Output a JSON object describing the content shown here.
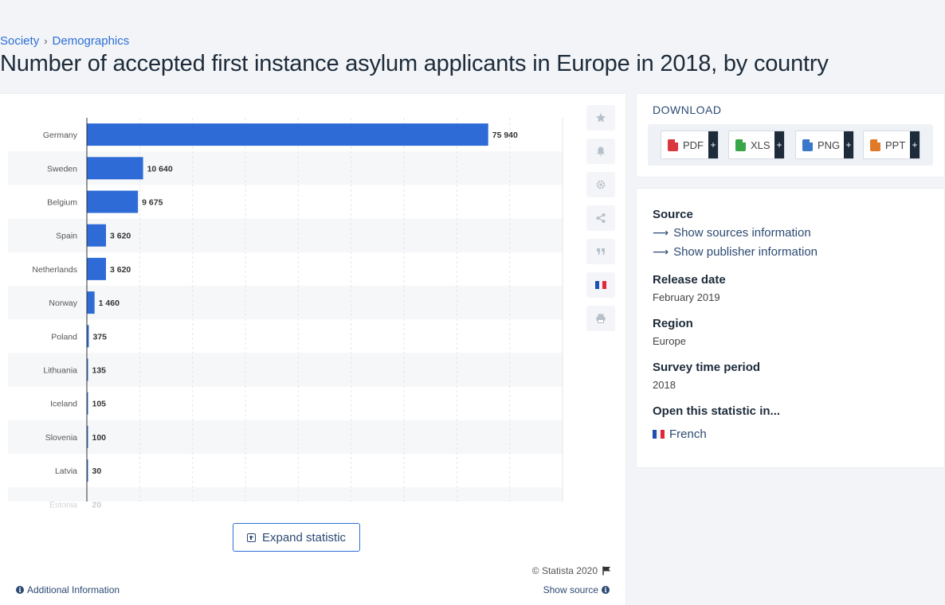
{
  "breadcrumb": {
    "items": [
      "Society",
      "Demographics"
    ],
    "separator": "›"
  },
  "page": {
    "title": "Number of accepted first instance asylum applicants in Europe in 2018, by country"
  },
  "chart_data": {
    "type": "bar",
    "orientation": "horizontal",
    "categories": [
      "Germany",
      "Sweden",
      "Belgium",
      "Spain",
      "Netherlands",
      "Norway",
      "Poland",
      "Lithuania",
      "Iceland",
      "Slovenia",
      "Latvia",
      "Estonia"
    ],
    "values": [
      75940,
      10640,
      9675,
      3620,
      3620,
      1460,
      375,
      135,
      105,
      100,
      30,
      20
    ],
    "value_labels": [
      "75 940",
      "10 640",
      "9 675",
      "3 620",
      "3 620",
      "1 460",
      "375",
      "135",
      "105",
      "100",
      "30",
      "20"
    ],
    "xlim": [
      0,
      90000
    ],
    "grid": true,
    "bar_color": "#2e6bd6"
  },
  "toolbar": {
    "icons": [
      "star-icon",
      "bell-icon",
      "gear-icon",
      "share-icon",
      "quote-icon",
      "french-flag-icon",
      "print-icon"
    ]
  },
  "actions": {
    "expand_label": "Expand statistic",
    "copyright": "© Statista 2020",
    "additional_info": "Additional Information",
    "show_source": "Show source"
  },
  "download": {
    "title": "DOWNLOAD",
    "formats": [
      {
        "label": "PDF",
        "plus": "+",
        "color": "#d9363e"
      },
      {
        "label": "XLS",
        "plus": "+",
        "color": "#3aa64a"
      },
      {
        "label": "PNG",
        "plus": "+",
        "color": "#3a78c9"
      },
      {
        "label": "PPT",
        "plus": "+",
        "color": "#e07a28"
      }
    ]
  },
  "source": {
    "heading": "Source",
    "show_sources": "Show sources information",
    "show_publisher": "Show publisher information",
    "release_heading": "Release date",
    "release_value": "February 2019",
    "region_heading": "Region",
    "region_value": "Europe",
    "period_heading": "Survey time period",
    "period_value": "2018",
    "open_heading": "Open this statistic in...",
    "open_language": "French"
  },
  "colors": {
    "accent": "#2c6fd6",
    "dark": "#1d2b3a",
    "flag": [
      "#1f4fb5",
      "#ffffff",
      "#e0283a"
    ]
  }
}
